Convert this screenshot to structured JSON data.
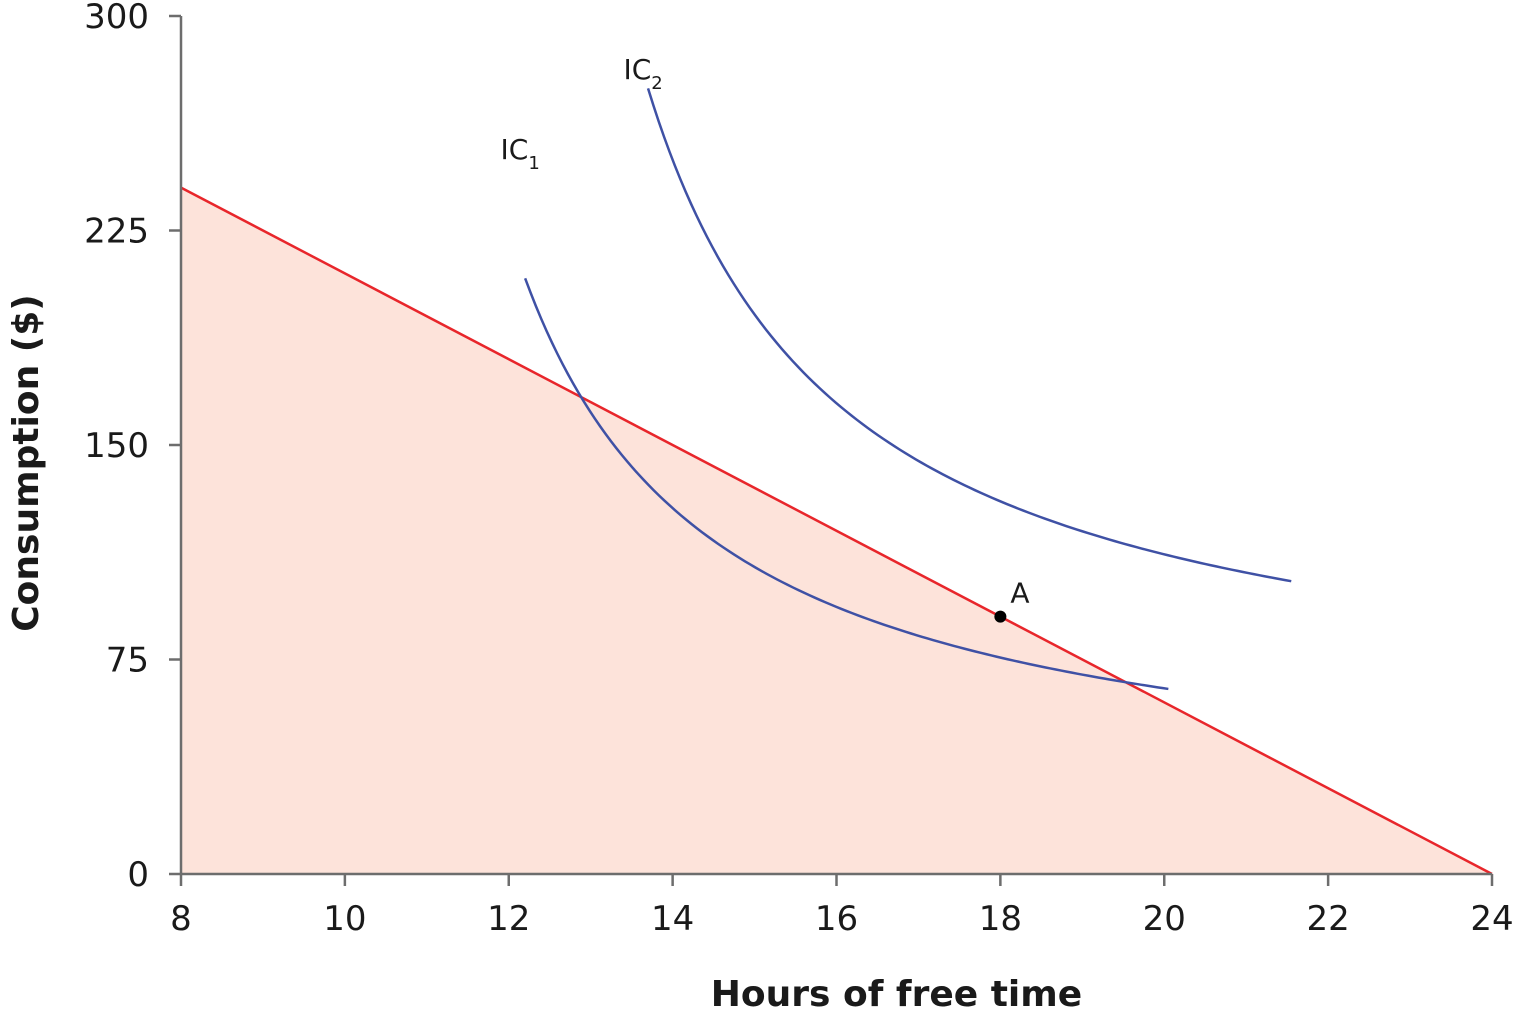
{
  "chart_data": {
    "type": "line",
    "xlabel": "Hours of free time",
    "ylabel": "Consumption ($)",
    "xlim": [
      8,
      24
    ],
    "ylim": [
      0,
      300
    ],
    "xticks": [
      8,
      10,
      12,
      14,
      16,
      18,
      20,
      22,
      24
    ],
    "yticks": [
      0,
      75,
      150,
      225,
      300
    ],
    "budget_line": {
      "points": [
        [
          8,
          240
        ],
        [
          24,
          0
        ]
      ],
      "color": "#e8262b",
      "fill": "#fde3da"
    },
    "indifference_curves": [
      {
        "label": "IC",
        "subscript": "1",
        "k": 450,
        "x0": 9.8,
        "y0": 20.8,
        "x_range": [
          12.2,
          20.05
        ],
        "color": "#3f51a5",
        "label_pos": [
          11.9,
          250
        ]
      },
      {
        "label": "IC",
        "subscript": "2",
        "k": 540,
        "x0": 11.3,
        "y0": 49.7,
        "x_range": [
          13.7,
          21.55
        ],
        "color": "#3f51a5",
        "label_pos": [
          13.4,
          278
        ]
      }
    ],
    "points": [
      {
        "label": "A",
        "x": 18,
        "y": 90,
        "color": "#000000"
      }
    ]
  }
}
